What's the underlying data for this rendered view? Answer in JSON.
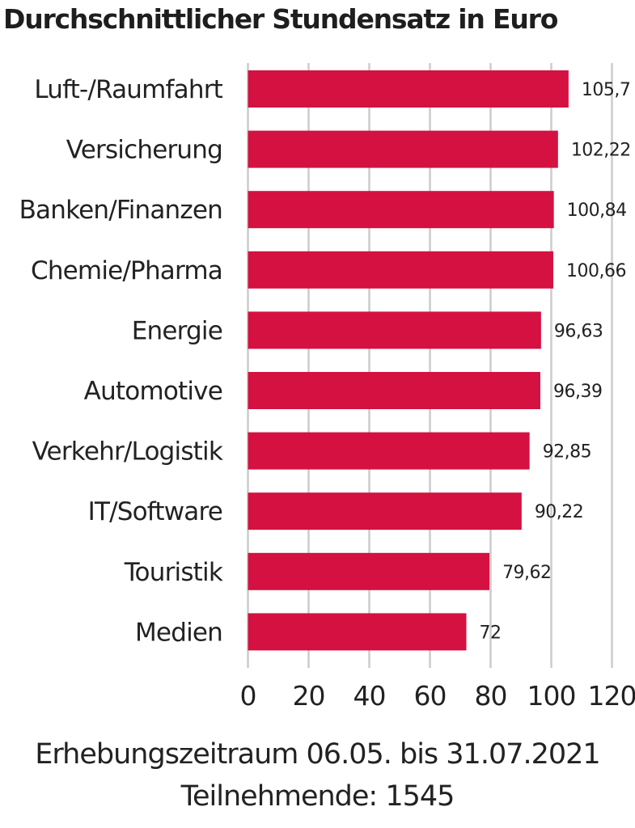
{
  "chart_data": {
    "type": "bar",
    "orientation": "horizontal",
    "title": "Durchschnittlicher Stundensatz in Euro",
    "categories": [
      "Luft-/Raumfahrt",
      "Versicherung",
      "Banken/Finanzen",
      "Chemie/Pharma",
      "Energie",
      "Automotive",
      "Verkehr/Logistik",
      "IT/Software",
      "Touristik",
      "Medien"
    ],
    "values": [
      105.7,
      102.22,
      100.84,
      100.66,
      96.63,
      96.39,
      92.85,
      90.22,
      79.62,
      72
    ],
    "value_labels": [
      "105,7",
      "102,22",
      "100,84",
      "100,66",
      "96,63",
      "96,39",
      "92,85",
      "90,22",
      "79,62",
      "72"
    ],
    "xlim": [
      0,
      120
    ],
    "xticks": [
      0,
      20,
      40,
      60,
      80,
      100,
      120
    ],
    "xlabel": "",
    "ylabel": "",
    "grid": "vertical",
    "bar_color": "#d41140",
    "grid_color": "#cccccc"
  },
  "footer": {
    "period": "Erhebungszeitraum 06.05. bis 31.07.2021",
    "participants": "Teilnehmende: 1545"
  }
}
